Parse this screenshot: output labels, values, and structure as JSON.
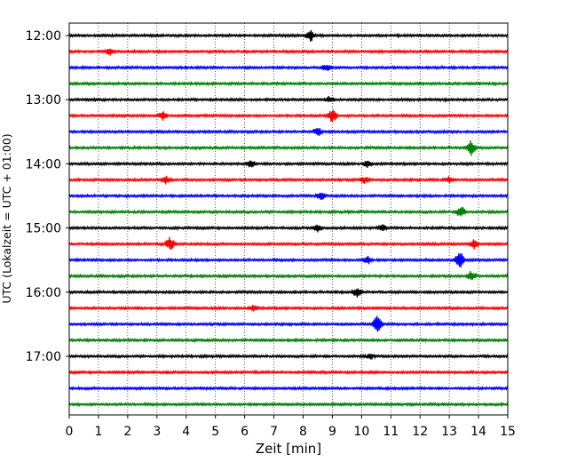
{
  "chart_data": {
    "type": "line",
    "xlabel": "Zeit  [min]",
    "ylabel": "UTC (Lokalzeit = UTC + 01:00)",
    "xlim": [
      0,
      15
    ],
    "x_ticks": [
      "0",
      "1",
      "2",
      "3",
      "4",
      "5",
      "6",
      "7",
      "8",
      "9",
      "10",
      "11",
      "12",
      "13",
      "14",
      "15"
    ],
    "y_ticks": [
      "12:00",
      "13:00",
      "14:00",
      "15:00",
      "16:00",
      "17:00"
    ],
    "grid": "vertical dotted",
    "trace_colors": [
      "#000000",
      "#ff0000",
      "#0000ff",
      "#008000"
    ],
    "traces": [
      {
        "start": "12:00",
        "events": [
          {
            "t": 8.25,
            "amp": 1.3
          }
        ]
      },
      {
        "start": "12:15",
        "events": [
          {
            "t": 1.4,
            "amp": 0.7
          }
        ]
      },
      {
        "start": "12:30",
        "events": [
          {
            "t": 8.8,
            "amp": 0.8
          }
        ]
      },
      {
        "start": "12:45",
        "events": []
      },
      {
        "start": "13:00",
        "events": [
          {
            "t": 8.9,
            "amp": 0.7
          }
        ]
      },
      {
        "start": "13:15",
        "events": [
          {
            "t": 3.2,
            "amp": 1.0
          },
          {
            "t": 9.0,
            "amp": 1.5
          }
        ]
      },
      {
        "start": "13:30",
        "events": [
          {
            "t": 8.5,
            "amp": 0.9
          }
        ]
      },
      {
        "start": "13:45",
        "events": [
          {
            "t": 13.75,
            "amp": 1.7
          }
        ]
      },
      {
        "start": "14:00",
        "events": [
          {
            "t": 6.2,
            "amp": 0.8
          },
          {
            "t": 10.2,
            "amp": 0.8
          }
        ]
      },
      {
        "start": "14:15",
        "events": [
          {
            "t": 3.3,
            "amp": 0.9
          },
          {
            "t": 10.1,
            "amp": 0.8
          },
          {
            "t": 13.0,
            "amp": 0.7
          }
        ]
      },
      {
        "start": "14:30",
        "events": [
          {
            "t": 8.6,
            "amp": 0.9
          }
        ]
      },
      {
        "start": "14:45",
        "events": [
          {
            "t": 13.4,
            "amp": 1.4
          }
        ]
      },
      {
        "start": "15:00",
        "events": [
          {
            "t": 8.5,
            "amp": 0.9
          },
          {
            "t": 10.7,
            "amp": 0.7
          }
        ]
      },
      {
        "start": "15:15",
        "events": [
          {
            "t": 3.45,
            "amp": 1.6
          },
          {
            "t": 13.85,
            "amp": 1.1
          }
        ]
      },
      {
        "start": "15:30",
        "events": [
          {
            "t": 10.2,
            "amp": 0.9
          },
          {
            "t": 13.35,
            "amp": 2.0
          }
        ]
      },
      {
        "start": "15:45",
        "events": [
          {
            "t": 13.75,
            "amp": 1.0
          }
        ]
      },
      {
        "start": "16:00",
        "events": [
          {
            "t": 9.85,
            "amp": 1.2
          }
        ]
      },
      {
        "start": "16:15",
        "events": [
          {
            "t": 6.3,
            "amp": 0.6
          }
        ]
      },
      {
        "start": "16:30",
        "events": [
          {
            "t": 10.55,
            "amp": 2.2
          }
        ]
      },
      {
        "start": "16:45",
        "events": []
      },
      {
        "start": "17:00",
        "events": [
          {
            "t": 10.3,
            "amp": 0.6
          }
        ]
      },
      {
        "start": "17:15",
        "events": []
      },
      {
        "start": "17:30",
        "events": []
      },
      {
        "start": "17:45",
        "events": []
      }
    ]
  }
}
